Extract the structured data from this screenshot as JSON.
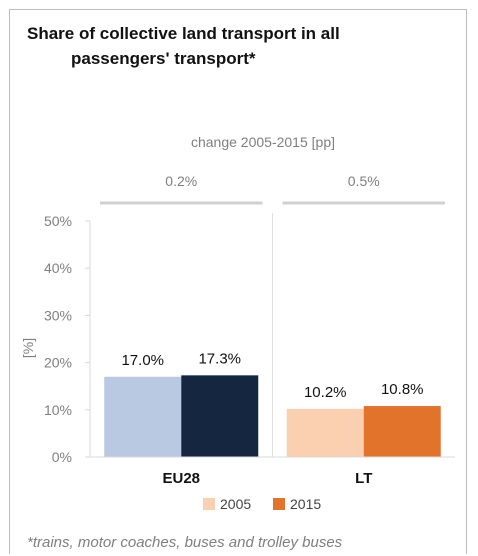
{
  "chart_data": {
    "type": "bar",
    "title_lines": [
      "Share of collective land transport in all",
      "passengers' transport*"
    ],
    "subtitle": "change 2005-2015 [pp]",
    "changes": [
      "0.2%",
      "0.5%"
    ],
    "categories": [
      "EU28",
      "LT"
    ],
    "series": [
      {
        "name": "2005",
        "values": [
          17.0,
          10.2
        ],
        "labels": [
          "17.0%",
          "10.2%"
        ]
      },
      {
        "name": "2015",
        "values": [
          17.3,
          10.8
        ],
        "labels": [
          "17.3%",
          "10.8%"
        ]
      }
    ],
    "bar_colors": [
      [
        "#b8c9e1",
        "#142640"
      ],
      [
        "#fbd0b0",
        "#e1742a"
      ]
    ],
    "legend_colors": [
      "#fbd0b0",
      "#e1742a"
    ],
    "ylabel": "[%]",
    "ylim": [
      0,
      50
    ],
    "yticks": [
      0,
      10,
      20,
      30,
      40,
      50
    ],
    "ytick_labels": [
      "0%",
      "10%",
      "20%",
      "30%",
      "40%",
      "50%"
    ],
    "footnote": "*trains, motor coaches, buses and trolley buses"
  }
}
